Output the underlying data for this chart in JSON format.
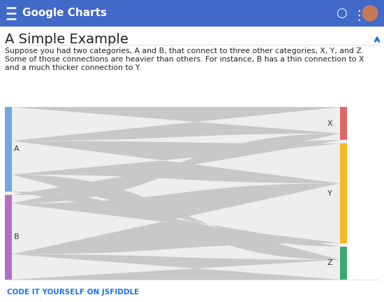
{
  "title": "A Simple Example",
  "subtitle_line1": "Suppose you had two categories, A and B, that connect to three other categories, X, Y, and Z.",
  "subtitle_line2": "Some of those connections are heavier than others. For instance, B has a thin connection to X",
  "subtitle_line3": "and a much thicker connection to Y.",
  "header_text": "Google Charts",
  "header_bg": "#4169c8",
  "header_text_color": "#ffffff",
  "page_bg": "#ffffff",
  "title_color": "#212121",
  "subtitle_color": "#212121",
  "footer_text": "CODE IT YOURSELF ON JSFIDDLE",
  "footer_color": "#1a73e8",
  "chart_bg": "#eeeeee",
  "flow_color": "#c8c8c8",
  "node_A_color": "#6fa8dc",
  "node_B_color": "#b26ec2",
  "node_X_color": "#e06666",
  "node_Y_color": "#f6b826",
  "node_Z_color": "#3aaa6e",
  "fig_width": 5.5,
  "fig_height": 4.32,
  "dpi": 100
}
